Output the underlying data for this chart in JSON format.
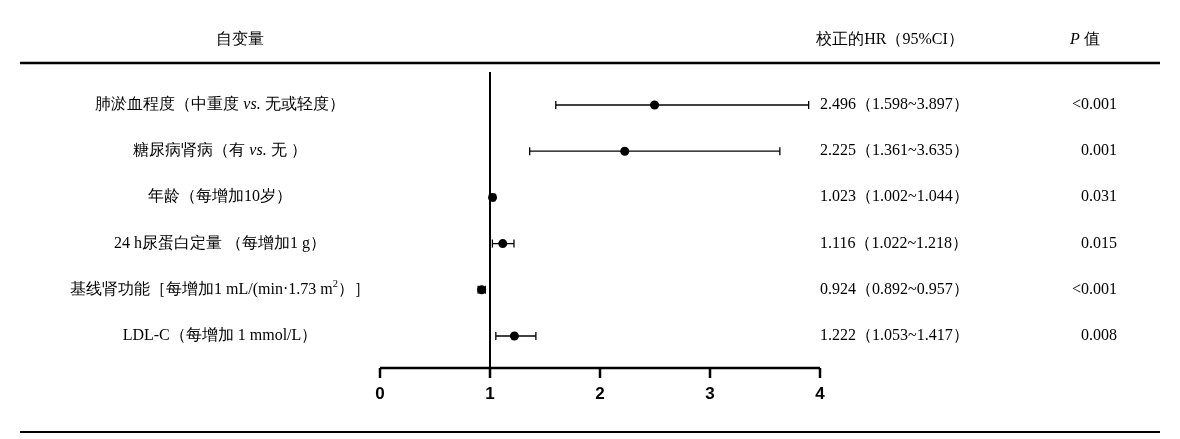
{
  "chart_data": {
    "type": "scatter",
    "orientation": "horizontal",
    "ylabel": "自变量",
    "categories": [
      "肺淤血程度（中重度 *vs.* 无或轻度）",
      "糖尿病肾病（有 *vs.* 无 ）",
      "年龄（每增加10岁）",
      "24 h尿蛋白定量 （每增加1 g）",
      "基线肾功能［每增加1 mL/(min·1.73 m$^{2}$）］",
      "LDL-C（每增加 1 mmol/L）"
    ],
    "values": [
      2.496,
      2.225,
      1.023,
      1.116,
      0.924,
      1.222
    ],
    "errors": [
      [
        1.598,
        3.897
      ],
      [
        1.361,
        3.635
      ],
      [
        1.002,
        1.044
      ],
      [
        1.022,
        1.218
      ],
      [
        0.892,
        0.957
      ],
      [
        1.053,
        1.417
      ]
    ],
    "value_labels": [
      "2.496（1.598~3.897）",
      "2.225（1.361~3.635）",
      "1.023（1.002~1.044）",
      "1.116（1.022~1.218）",
      "0.924（0.892~0.957）",
      "1.222（1.053~1.417）"
    ],
    "color": "#000000",
    "marker": "circle",
    "legend": false,
    "grid": false,
    "xlim": [
      0,
      4
    ],
    "xticks": [
      0,
      1,
      2,
      3,
      4
    ],
    "ref_lines": [
      {
        "axis": "x",
        "value": 1
      }
    ],
    "annotations": [
      "校正的HR（95%CI）",
      "*P* 值",
      "<0.001",
      "0.001",
      "0.031",
      "0.015",
      "<0.001",
      "0.008"
    ]
  }
}
